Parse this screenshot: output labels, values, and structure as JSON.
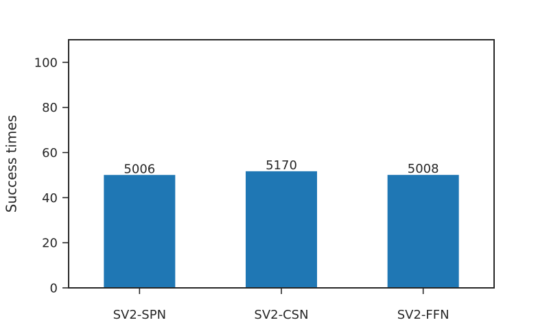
{
  "chart_data": {
    "type": "bar",
    "categories": [
      "SV2-SPN",
      "SV2-CSN",
      "SV2-FFN"
    ],
    "values": [
      50.06,
      51.7,
      50.08
    ],
    "data_labels": [
      "5006",
      "5170",
      "5008"
    ],
    "title": "",
    "xlabel": "",
    "ylabel": "Success times",
    "ylim": [
      0,
      110
    ],
    "yticks": [
      0,
      20,
      40,
      60,
      80,
      100
    ],
    "grid": false,
    "bar_color": "#1f77b4"
  }
}
